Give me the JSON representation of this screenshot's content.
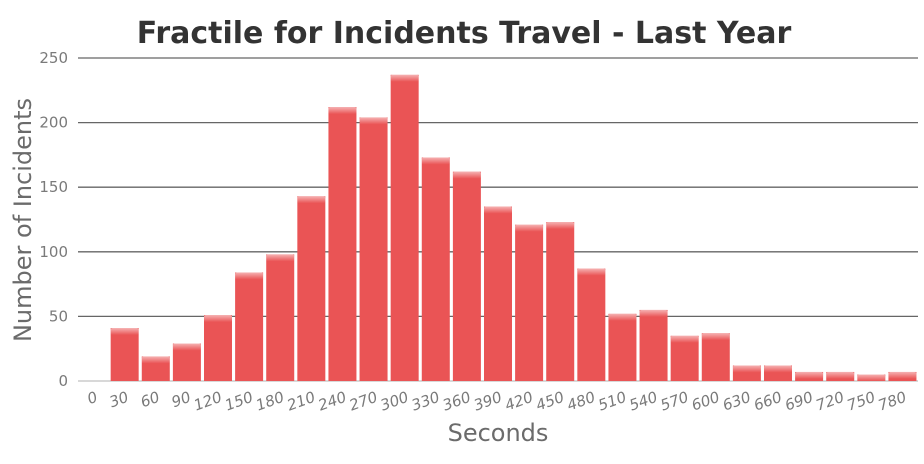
{
  "chart_data": {
    "type": "bar",
    "title": "Fractile for Incidents Travel - Last Year",
    "xlabel": "Seconds",
    "ylabel": "Number of Incidents",
    "categories": [
      "0",
      "30",
      "60",
      "90",
      "120",
      "150",
      "180",
      "210",
      "240",
      "270",
      "300",
      "330",
      "360",
      "390",
      "420",
      "450",
      "480",
      "510",
      "540",
      "570",
      "600",
      "630",
      "660",
      "690",
      "720",
      "750",
      "780"
    ],
    "values": [
      0,
      41,
      19,
      29,
      51,
      84,
      98,
      143,
      212,
      204,
      237,
      173,
      162,
      135,
      121,
      123,
      87,
      52,
      55,
      35,
      37,
      12,
      12,
      7,
      7,
      5,
      7
    ],
    "ylim": [
      0,
      250
    ],
    "yticks": [
      0,
      50,
      100,
      150,
      200,
      250
    ],
    "grid": true,
    "legend": "none",
    "bar_color": "#ea5455"
  }
}
